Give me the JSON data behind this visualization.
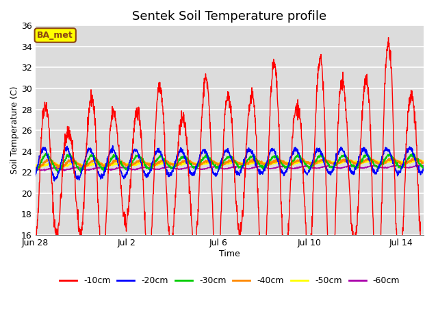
{
  "title": "Sentek Soil Temperature profile",
  "xlabel": "Time",
  "ylabel": "Soil Temperature (C)",
  "ylim": [
    16,
    36
  ],
  "yticks": [
    16,
    18,
    20,
    22,
    24,
    26,
    28,
    30,
    32,
    34,
    36
  ],
  "background_color": "#dcdcdc",
  "fig_background": "#ffffff",
  "annotation_text": "BA_met",
  "annotation_bg": "#ffff00",
  "annotation_border": "#8B4513",
  "series_colors": {
    "-10cm": "#ff0000",
    "-20cm": "#0000ff",
    "-30cm": "#00cc00",
    "-40cm": "#ff8800",
    "-50cm": "#ffff00",
    "-60cm": "#aa00aa"
  },
  "n_days": 17,
  "x_tick_positions": [
    0,
    4,
    8,
    12,
    16
  ],
  "x_tick_labels": [
    "Jun 28",
    "Jul 2",
    "Jul 6",
    "Jul 10",
    "Jul 14"
  ],
  "seed": 42
}
